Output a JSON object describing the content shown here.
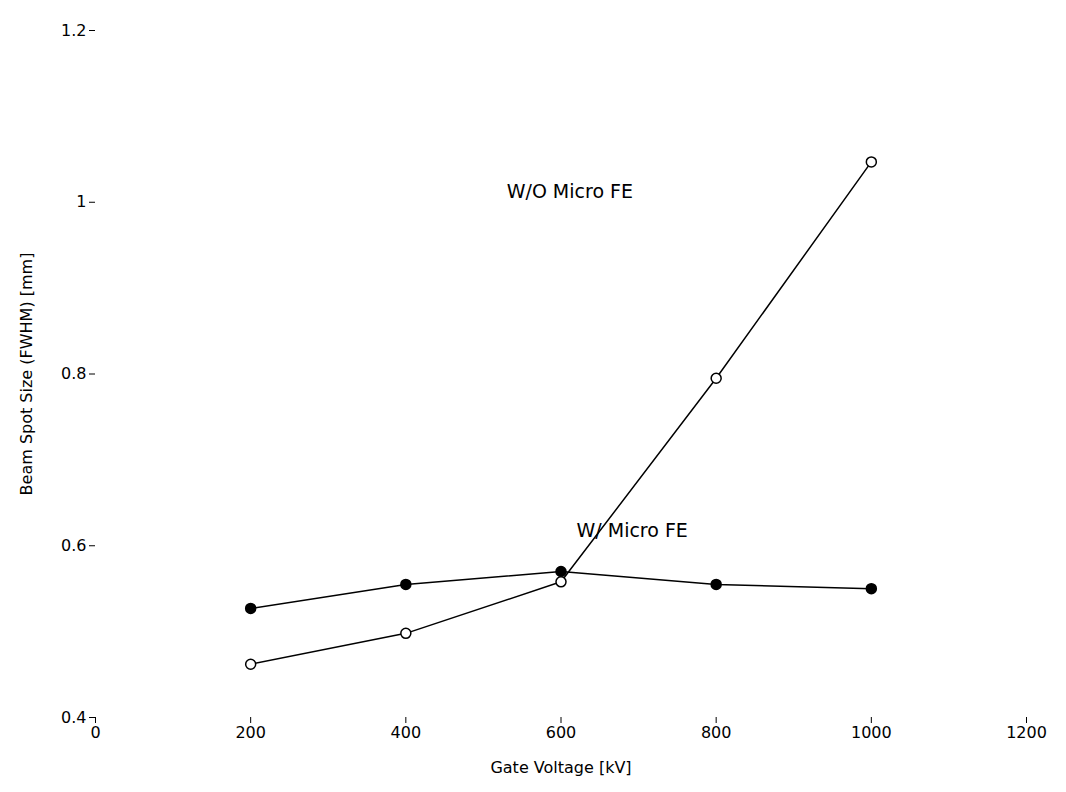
{
  "chart_data": {
    "type": "line",
    "xlabel": "Gate Voltage [kV]",
    "ylabel": "Beam Spot Size (FWHM) [mm]",
    "x": [
      200,
      400,
      600,
      800,
      1000
    ],
    "series": [
      {
        "name": "W/ Micro FE",
        "color": "#000000",
        "marker": "circle",
        "values": [
          0.527,
          0.555,
          0.57,
          0.555,
          0.55
        ]
      },
      {
        "name": "W/O Micro FE",
        "color": "#000000",
        "marker": "open_circle",
        "values": [
          0.462,
          0.498,
          0.558,
          0.795,
          1.047
        ]
      }
    ],
    "annotations": [
      {
        "text": "W/O Micro FE",
        "x": 530,
        "y": 1.005
      },
      {
        "text": "W/ Micro FE",
        "x": 620,
        "y": 0.61
      }
    ],
    "xlim": [
      0,
      1200
    ],
    "ylim": [
      0.4,
      1.2
    ],
    "xticks": [
      0,
      200,
      400,
      600,
      800,
      1000,
      1200
    ],
    "yticks": [
      0.4,
      0.6,
      0.8,
      1,
      1.2
    ]
  }
}
